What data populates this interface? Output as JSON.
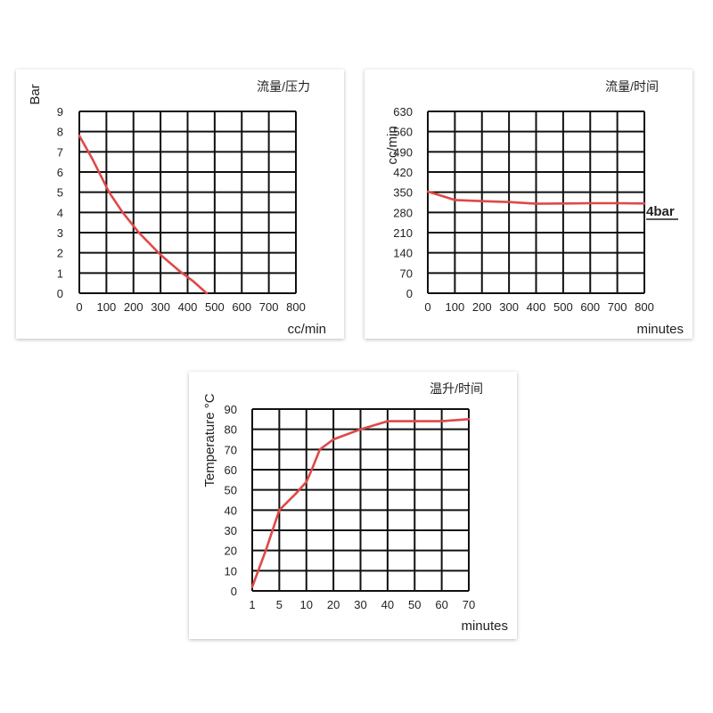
{
  "chart_data": [
    {
      "type": "line",
      "title": "流量/压力",
      "xlabel": "cc/min",
      "ylabel": "Bar",
      "xlim": [
        0,
        800
      ],
      "ylim": [
        0,
        9
      ],
      "x_ticks": [
        "0",
        "100",
        "200",
        "300",
        "400",
        "500",
        "600",
        "700",
        "800"
      ],
      "y_ticks": [
        "0",
        "1",
        "2",
        "3",
        "4",
        "5",
        "6",
        "7",
        "8",
        "9"
      ],
      "grid": true,
      "line_color": "#e04848",
      "series": [
        {
          "x": [
            0,
            50,
            110,
            160,
            220,
            300,
            370,
            420,
            470
          ],
          "y": [
            7.8,
            6.6,
            5.0,
            4.0,
            3.0,
            1.9,
            1.1,
            0.6,
            0.0
          ]
        }
      ]
    },
    {
      "type": "line",
      "title": "流量/时间",
      "xlabel": "minutes",
      "ylabel": "cc/min",
      "xlim": [
        0,
        800
      ],
      "ylim": [
        0,
        630
      ],
      "x_ticks": [
        "0",
        "100",
        "200",
        "300",
        "400",
        "500",
        "600",
        "700",
        "800"
      ],
      "y_ticks": [
        "0",
        "70",
        "140",
        "210",
        "280",
        "350",
        "420",
        "490",
        "560",
        "630"
      ],
      "grid": true,
      "line_color": "#e04848",
      "annotation": "4bar",
      "series": [
        {
          "x": [
            0,
            50,
            100,
            200,
            300,
            400,
            500,
            600,
            700,
            800
          ],
          "y": [
            352,
            338,
            323,
            319,
            316,
            310,
            311,
            312,
            312,
            311
          ]
        }
      ]
    },
    {
      "type": "line",
      "title": "温升/时间",
      "xlabel": "minutes",
      "ylabel": "Temperature °C",
      "ylim": [
        0,
        90
      ],
      "x_ticks": [
        "1",
        "5",
        "10",
        "20",
        "30",
        "40",
        "50",
        "60",
        "70"
      ],
      "y_ticks": [
        "0",
        "10",
        "20",
        "30",
        "40",
        "50",
        "60",
        "70",
        "80",
        "90"
      ],
      "grid": true,
      "line_color": "#e04848",
      "series": [
        {
          "x": [
            "1",
            "3",
            "5",
            "8",
            "10",
            "12",
            "15",
            "20",
            "30",
            "40",
            "50",
            "60",
            "70"
          ],
          "y": [
            2,
            20,
            40,
            48,
            54,
            60,
            70,
            75,
            80,
            84,
            84,
            84,
            85
          ]
        }
      ]
    }
  ]
}
